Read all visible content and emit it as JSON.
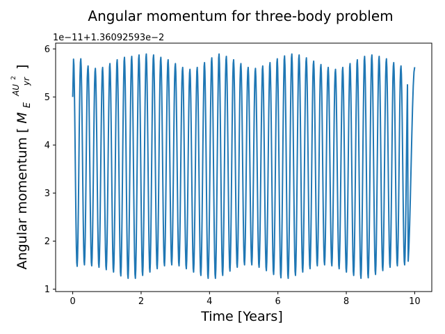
{
  "chart_data": {
    "type": "line",
    "title": "Angular momentum for three-body problem",
    "xlabel": "Time [Years]",
    "ylabel_prefix": "Angular momentum [",
    "ylabel_units": {
      "base": "M",
      "sub": "E",
      "numerator": "AU",
      "numerator_sup": "2",
      "denominator": "yr",
      "suffix": "]"
    },
    "y_offset_text": "1e−11+1.36092593e−2",
    "xlim": [
      -0.5,
      10.5
    ],
    "ylim": [
      0.95,
      6.12
    ],
    "x_ticks": [
      0,
      2,
      4,
      6,
      8,
      10
    ],
    "x_tick_labels": [
      "0",
      "2",
      "4",
      "6",
      "8",
      "10"
    ],
    "y_ticks": [
      1,
      2,
      3,
      4,
      5,
      6
    ],
    "y_tick_labels": [
      "1",
      "2",
      "3",
      "4",
      "5",
      "6"
    ],
    "grid": false,
    "series": [
      {
        "color": "#1f77b4",
        "t_start": 0,
        "t_end": 10,
        "period_years": 0.2128,
        "start_value": 5.0,
        "end_value": 5.62,
        "peaks": [
          5.85,
          5.8,
          5.65,
          5.6,
          5.62,
          5.7,
          5.78,
          5.83,
          5.85,
          5.88,
          5.9,
          5.88,
          5.83,
          5.78,
          5.7,
          5.62,
          5.58,
          5.62,
          5.72,
          5.82,
          5.9,
          5.85,
          5.78,
          5.7,
          5.62,
          5.6,
          5.65,
          5.72,
          5.8,
          5.86,
          5.9,
          5.88,
          5.82,
          5.75,
          5.68,
          5.62,
          5.58,
          5.62,
          5.7,
          5.78,
          5.85,
          5.88,
          5.85,
          5.8,
          5.72,
          5.65,
          5.62
        ],
        "troughs": [
          1.47,
          1.5,
          1.48,
          1.45,
          1.4,
          1.35,
          1.27,
          1.22,
          1.22,
          1.28,
          1.35,
          1.42,
          1.48,
          1.5,
          1.48,
          1.42,
          1.35,
          1.28,
          1.22,
          1.22,
          1.28,
          1.37,
          1.45,
          1.5,
          1.5,
          1.45,
          1.38,
          1.3,
          1.23,
          1.22,
          1.28,
          1.35,
          1.42,
          1.48,
          1.5,
          1.48,
          1.42,
          1.35,
          1.28,
          1.22,
          1.23,
          1.3,
          1.38,
          1.45,
          1.48,
          1.5,
          1.48
        ]
      }
    ]
  }
}
